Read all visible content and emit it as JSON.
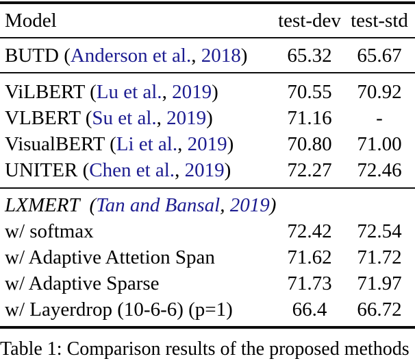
{
  "colors": {
    "citation_link": "#1c1c90",
    "text": "#000000",
    "rule": "#0d0d0d",
    "background": "#ffffff"
  },
  "table": {
    "header": {
      "model": "Model",
      "dev": "test-dev",
      "std": "test-std"
    },
    "rows": {
      "butd": {
        "pre": "BUTD (",
        "authors": "Anderson et al.",
        "sep": ", ",
        "year": "2018",
        "post": ")",
        "dev": "65.32",
        "std": "65.67"
      },
      "vilbert": {
        "pre": "ViLBERT (",
        "authors": "Lu et al.",
        "sep": ", ",
        "year": "2019",
        "post": ")",
        "dev": "70.55",
        "std": "70.92"
      },
      "vlbert": {
        "pre": "VLBERT (",
        "authors": "Su et al.",
        "sep": ", ",
        "year": "2019",
        "post": ")",
        "dev": "71.16",
        "std": "-"
      },
      "visualbert": {
        "pre": "VisualBERT (",
        "authors": "Li et al.",
        "sep": ", ",
        "year": "2019",
        "post": ")",
        "dev": "70.80",
        "std": "71.00"
      },
      "uniter": {
        "pre": "UNITER (",
        "authors": "Chen et al.",
        "sep": ", ",
        "year": "2019",
        "post": ")",
        "dev": "72.27",
        "std": "72.46"
      },
      "lxmert": {
        "pre": "LXMERT  (",
        "authors": "Tan and Bansal",
        "sep": ", ",
        "year": "2019",
        "post": ")",
        "dev": "",
        "std": ""
      },
      "softmax": {
        "label": "w/ softmax",
        "dev": "72.42",
        "std": "72.54"
      },
      "attspan": {
        "label": "w/ Adaptive Attetion Span",
        "dev": "71.62",
        "std": "71.72"
      },
      "sparse": {
        "label": "w/ Adaptive Sparse",
        "dev": "71.73",
        "std": "71.97"
      },
      "layerdrop": {
        "label": "w/ Layerdrop (10-6-6) (p=1)",
        "dev": "66.4",
        "std": "66.72"
      }
    }
  },
  "caption": "Table 1: Comparison results of the proposed methods"
}
